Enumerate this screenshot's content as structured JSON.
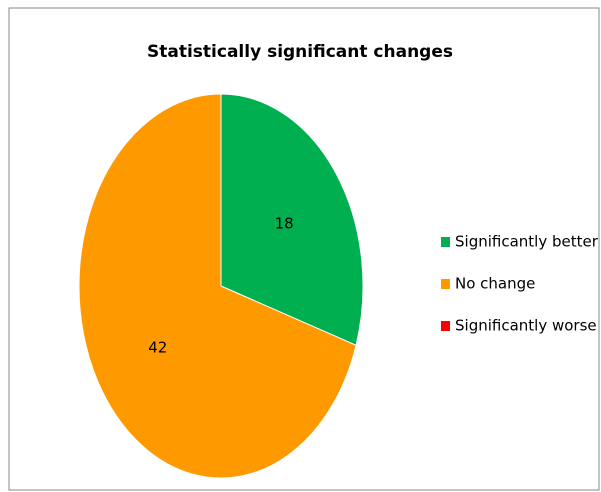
{
  "chart_data": {
    "type": "pie",
    "title": "Statistically significant changes",
    "categories": [
      "Significantly better",
      "No change",
      "Significantly worse"
    ],
    "values": [
      18,
      42,
      0
    ],
    "colors": [
      "#00b050",
      "#ff9900",
      "#ff0000"
    ],
    "legend": "right"
  }
}
